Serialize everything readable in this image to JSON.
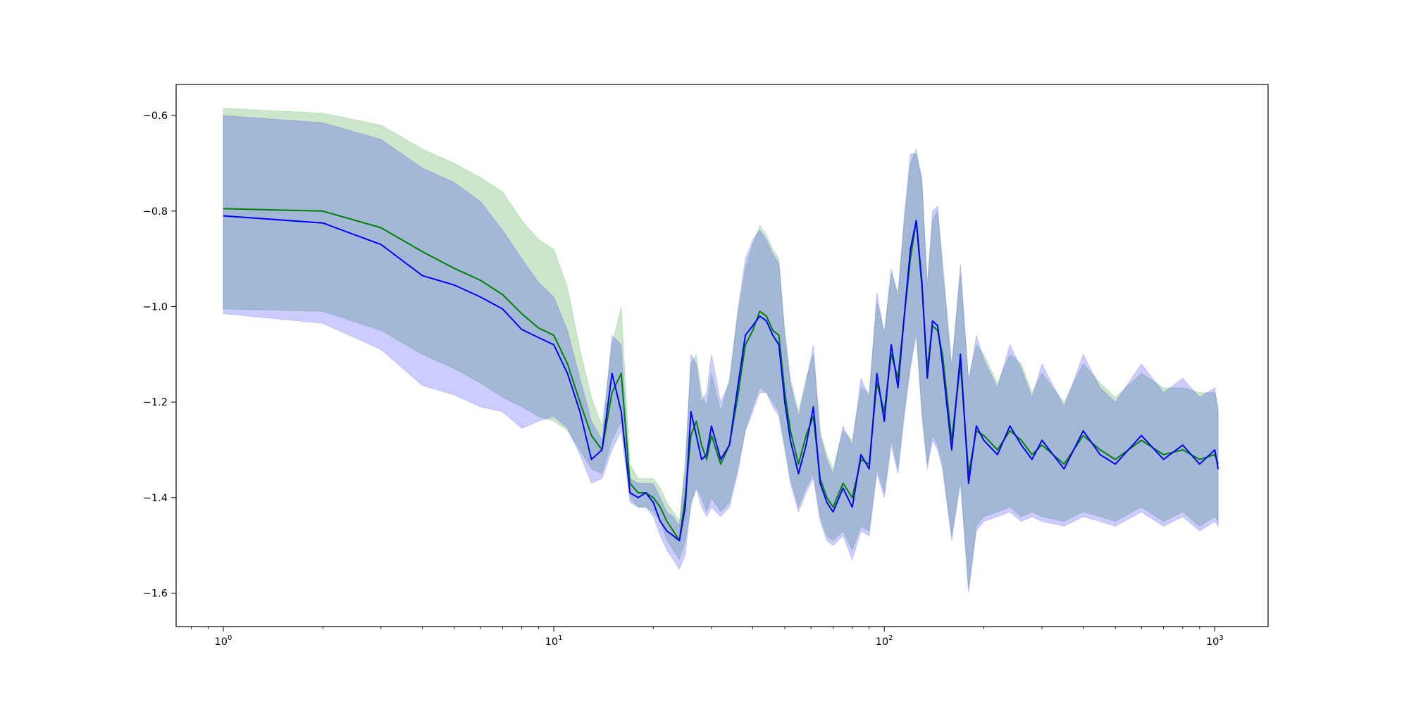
{
  "chart_data": {
    "type": "line",
    "title": "",
    "xlabel": "",
    "ylabel": "",
    "xscale": "log",
    "xlim": [
      0.72,
      1450
    ],
    "ylim": [
      -1.67,
      -0.535
    ],
    "grid": false,
    "legend": "none",
    "x_major_ticks": [
      {
        "value": 1,
        "base": "10",
        "exp": "0"
      },
      {
        "value": 10,
        "base": "10",
        "exp": "1"
      },
      {
        "value": 100,
        "base": "10",
        "exp": "2"
      },
      {
        "value": 1000,
        "base": "10",
        "exp": "3"
      }
    ],
    "y_ticks": [
      {
        "value": -0.6,
        "label": "−0.6"
      },
      {
        "value": -0.8,
        "label": "−0.8"
      },
      {
        "value": -1.0,
        "label": "−1.0"
      },
      {
        "value": -1.2,
        "label": "−1.2"
      },
      {
        "value": -1.4,
        "label": "−1.4"
      },
      {
        "value": -1.6,
        "label": "−1.6"
      }
    ],
    "series": [
      {
        "color": "#008000",
        "band_color": "#008000",
        "band_opacity": 0.2,
        "x": [
          1,
          2,
          3,
          4,
          5,
          6,
          7,
          8,
          9,
          10,
          11,
          12,
          13,
          14,
          15,
          16,
          17,
          18,
          19,
          20,
          21,
          22,
          23,
          24,
          25,
          26,
          27,
          28,
          29,
          30,
          32,
          34,
          36,
          38,
          40,
          42,
          44,
          46,
          48,
          50,
          52,
          55,
          58,
          61,
          64,
          67,
          70,
          75,
          80,
          85,
          90,
          95,
          100,
          105,
          110,
          115,
          120,
          125,
          130,
          135,
          140,
          145,
          150,
          160,
          170,
          180,
          190,
          200,
          220,
          240,
          260,
          280,
          300,
          350,
          400,
          450,
          500,
          600,
          700,
          800,
          900,
          1000,
          1024
        ],
        "y": [
          -0.795,
          -0.8,
          -0.835,
          -0.885,
          -0.92,
          -0.945,
          -0.975,
          -1.015,
          -1.045,
          -1.06,
          -1.12,
          -1.2,
          -1.27,
          -1.3,
          -1.18,
          -1.14,
          -1.37,
          -1.39,
          -1.39,
          -1.4,
          -1.42,
          -1.45,
          -1.47,
          -1.49,
          -1.4,
          -1.27,
          -1.24,
          -1.29,
          -1.32,
          -1.27,
          -1.33,
          -1.29,
          -1.19,
          -1.08,
          -1.05,
          -1.01,
          -1.02,
          -1.05,
          -1.06,
          -1.18,
          -1.26,
          -1.33,
          -1.27,
          -1.23,
          -1.36,
          -1.4,
          -1.42,
          -1.37,
          -1.4,
          -1.32,
          -1.33,
          -1.16,
          -1.22,
          -1.1,
          -1.15,
          -1.02,
          -0.9,
          -0.82,
          -0.96,
          -1.13,
          -1.04,
          -1.05,
          -1.1,
          -1.28,
          -1.12,
          -1.35,
          -1.26,
          -1.27,
          -1.3,
          -1.26,
          -1.28,
          -1.31,
          -1.29,
          -1.33,
          -1.27,
          -1.3,
          -1.32,
          -1.28,
          -1.31,
          -1.3,
          -1.32,
          -1.31,
          -1.33
        ],
        "lower": [
          -1.005,
          -1.01,
          -1.05,
          -1.1,
          -1.13,
          -1.16,
          -1.19,
          -1.21,
          -1.23,
          -1.24,
          -1.26,
          -1.3,
          -1.34,
          -1.35,
          -1.28,
          -1.24,
          -1.4,
          -1.42,
          -1.42,
          -1.43,
          -1.45,
          -1.49,
          -1.51,
          -1.53,
          -1.49,
          -1.42,
          -1.38,
          -1.4,
          -1.43,
          -1.4,
          -1.43,
          -1.41,
          -1.34,
          -1.26,
          -1.21,
          -1.17,
          -1.18,
          -1.2,
          -1.22,
          -1.29,
          -1.36,
          -1.42,
          -1.38,
          -1.35,
          -1.44,
          -1.48,
          -1.49,
          -1.47,
          -1.51,
          -1.46,
          -1.47,
          -1.34,
          -1.39,
          -1.28,
          -1.34,
          -1.22,
          -1.12,
          -1.05,
          -1.22,
          -1.33,
          -1.27,
          -1.29,
          -1.33,
          -1.48,
          -1.36,
          -1.59,
          -1.46,
          -1.44,
          -1.43,
          -1.42,
          -1.44,
          -1.43,
          -1.44,
          -1.45,
          -1.43,
          -1.44,
          -1.45,
          -1.42,
          -1.45,
          -1.43,
          -1.46,
          -1.44,
          -1.45
        ],
        "upper": [
          -0.585,
          -0.595,
          -0.62,
          -0.67,
          -0.7,
          -0.73,
          -0.76,
          -0.82,
          -0.86,
          -0.88,
          -0.96,
          -1.09,
          -1.19,
          -1.25,
          -1.08,
          -1.0,
          -1.33,
          -1.36,
          -1.36,
          -1.36,
          -1.38,
          -1.41,
          -1.43,
          -1.45,
          -1.32,
          -1.12,
          -1.1,
          -1.18,
          -1.21,
          -1.14,
          -1.22,
          -1.15,
          -1.02,
          -0.92,
          -0.87,
          -0.83,
          -0.85,
          -0.88,
          -0.9,
          -1.05,
          -1.15,
          -1.22,
          -1.15,
          -1.1,
          -1.26,
          -1.31,
          -1.34,
          -1.26,
          -1.28,
          -1.17,
          -1.18,
          -0.99,
          -1.05,
          -0.93,
          -0.97,
          -0.82,
          -0.7,
          -0.67,
          -0.74,
          -0.95,
          -0.82,
          -0.8,
          -0.9,
          -1.12,
          -0.93,
          -1.15,
          -1.08,
          -1.1,
          -1.16,
          -1.1,
          -1.12,
          -1.18,
          -1.14,
          -1.2,
          -1.12,
          -1.16,
          -1.19,
          -1.14,
          -1.17,
          -1.17,
          -1.18,
          -1.18,
          -1.21
        ]
      },
      {
        "color": "#0000ff",
        "band_color": "#0000ff",
        "band_opacity": 0.2,
        "x": [
          1,
          2,
          3,
          4,
          5,
          6,
          7,
          8,
          9,
          10,
          11,
          12,
          13,
          14,
          15,
          16,
          17,
          18,
          19,
          20,
          21,
          22,
          23,
          24,
          25,
          26,
          27,
          28,
          29,
          30,
          32,
          34,
          36,
          38,
          40,
          42,
          44,
          46,
          48,
          50,
          52,
          55,
          58,
          61,
          64,
          67,
          70,
          75,
          80,
          85,
          90,
          95,
          100,
          105,
          110,
          115,
          120,
          125,
          130,
          135,
          140,
          145,
          150,
          160,
          170,
          180,
          190,
          200,
          220,
          240,
          260,
          280,
          300,
          350,
          400,
          450,
          500,
          600,
          700,
          800,
          900,
          1000,
          1024
        ],
        "y": [
          -0.81,
          -0.825,
          -0.87,
          -0.935,
          -0.955,
          -0.98,
          -1.005,
          -1.048,
          -1.065,
          -1.08,
          -1.14,
          -1.22,
          -1.32,
          -1.3,
          -1.14,
          -1.22,
          -1.39,
          -1.4,
          -1.39,
          -1.41,
          -1.45,
          -1.47,
          -1.48,
          -1.49,
          -1.42,
          -1.22,
          -1.27,
          -1.32,
          -1.31,
          -1.25,
          -1.32,
          -1.29,
          -1.17,
          -1.06,
          -1.04,
          -1.02,
          -1.03,
          -1.06,
          -1.08,
          -1.2,
          -1.28,
          -1.35,
          -1.29,
          -1.21,
          -1.37,
          -1.41,
          -1.43,
          -1.38,
          -1.42,
          -1.31,
          -1.34,
          -1.14,
          -1.24,
          -1.08,
          -1.17,
          -1.02,
          -0.88,
          -0.82,
          -0.95,
          -1.15,
          -1.03,
          -1.04,
          -1.12,
          -1.3,
          -1.1,
          -1.37,
          -1.25,
          -1.28,
          -1.31,
          -1.25,
          -1.29,
          -1.32,
          -1.28,
          -1.34,
          -1.26,
          -1.31,
          -1.33,
          -1.27,
          -1.32,
          -1.29,
          -1.33,
          -1.3,
          -1.34
        ],
        "lower": [
          -1.015,
          -1.035,
          -1.09,
          -1.165,
          -1.185,
          -1.21,
          -1.22,
          -1.255,
          -1.24,
          -1.23,
          -1.255,
          -1.31,
          -1.37,
          -1.36,
          -1.3,
          -1.26,
          -1.41,
          -1.42,
          -1.42,
          -1.44,
          -1.48,
          -1.51,
          -1.53,
          -1.55,
          -1.52,
          -1.41,
          -1.38,
          -1.42,
          -1.44,
          -1.42,
          -1.44,
          -1.42,
          -1.35,
          -1.26,
          -1.22,
          -1.18,
          -1.18,
          -1.21,
          -1.23,
          -1.3,
          -1.37,
          -1.43,
          -1.39,
          -1.36,
          -1.45,
          -1.49,
          -1.5,
          -1.48,
          -1.53,
          -1.47,
          -1.48,
          -1.35,
          -1.4,
          -1.29,
          -1.35,
          -1.23,
          -1.13,
          -1.06,
          -1.23,
          -1.34,
          -1.28,
          -1.3,
          -1.34,
          -1.49,
          -1.37,
          -1.6,
          -1.47,
          -1.45,
          -1.44,
          -1.43,
          -1.45,
          -1.44,
          -1.45,
          -1.46,
          -1.44,
          -1.45,
          -1.46,
          -1.43,
          -1.46,
          -1.44,
          -1.47,
          -1.45,
          -1.46
        ],
        "upper": [
          -0.6,
          -0.615,
          -0.65,
          -0.71,
          -0.74,
          -0.78,
          -0.84,
          -0.9,
          -0.95,
          -0.98,
          -1.05,
          -1.15,
          -1.24,
          -1.28,
          -1.06,
          -1.08,
          -1.36,
          -1.37,
          -1.37,
          -1.37,
          -1.4,
          -1.43,
          -1.44,
          -1.46,
          -1.34,
          -1.1,
          -1.12,
          -1.2,
          -1.18,
          -1.1,
          -1.2,
          -1.16,
          -1.01,
          -0.9,
          -0.86,
          -0.84,
          -0.86,
          -0.89,
          -0.91,
          -1.06,
          -1.16,
          -1.23,
          -1.16,
          -1.08,
          -1.27,
          -1.32,
          -1.35,
          -1.25,
          -1.29,
          -1.15,
          -1.19,
          -0.97,
          -1.06,
          -0.92,
          -0.98,
          -0.81,
          -0.68,
          -0.68,
          -0.73,
          -0.96,
          -0.8,
          -0.79,
          -0.92,
          -1.13,
          -0.91,
          -1.16,
          -1.06,
          -1.11,
          -1.17,
          -1.08,
          -1.13,
          -1.19,
          -1.12,
          -1.21,
          -1.1,
          -1.17,
          -1.2,
          -1.12,
          -1.18,
          -1.15,
          -1.19,
          -1.17,
          -1.22
        ]
      }
    ]
  }
}
